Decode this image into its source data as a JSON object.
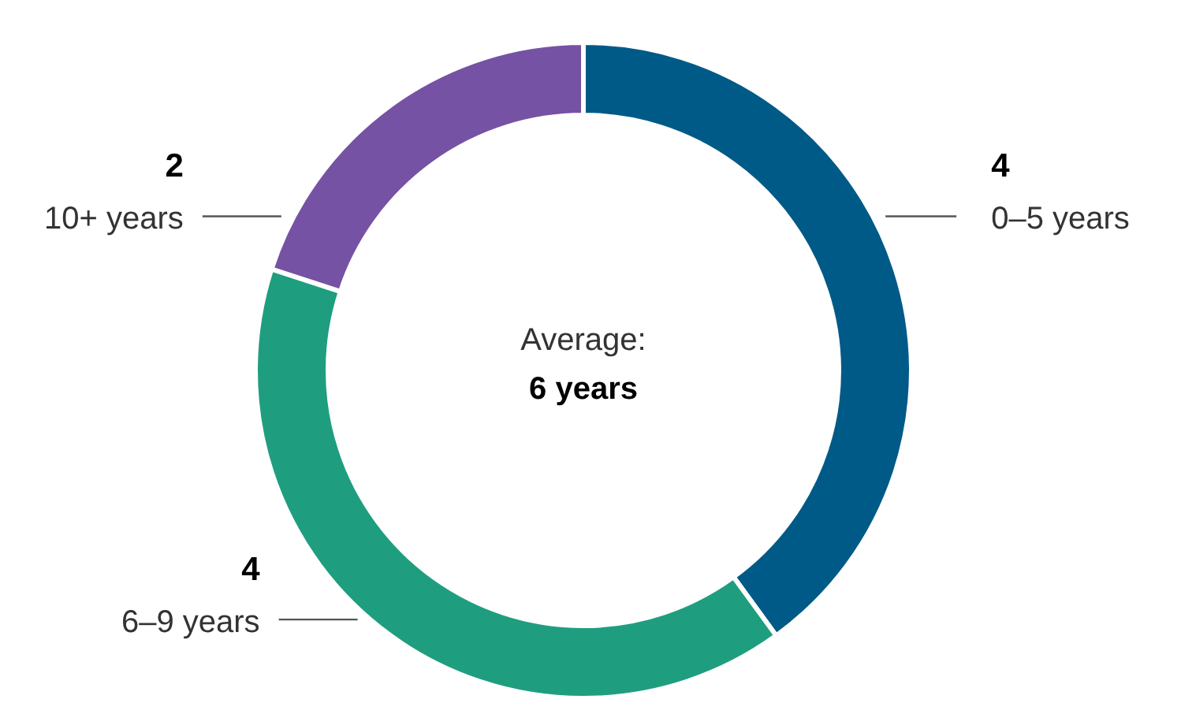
{
  "chart_data": {
    "type": "donut",
    "categories": [
      "0–5 years",
      "6–9 years",
      "10+ years"
    ],
    "values": [
      4,
      4,
      2
    ],
    "colors": [
      "#005a87",
      "#1f9e7f",
      "#7552a3"
    ],
    "data_labels": true,
    "annotations": [
      "Average:",
      "6 years"
    ]
  }
}
